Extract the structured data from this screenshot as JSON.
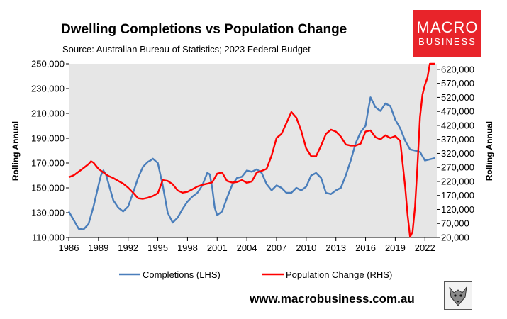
{
  "header": {
    "title": "Dwelling Completions vs Population Change",
    "subtitle": "Source: Australian Bureau of Statistics; 2023 Federal Budget"
  },
  "logo": {
    "line1": "MACRO",
    "line2": "BUSINESS",
    "color": "#e8242a"
  },
  "footer": {
    "website": "www.macrobusiness.com.au"
  },
  "chart_data": {
    "type": "line",
    "title": "Dwelling Completions vs Population Change",
    "xlabel": "",
    "ylabel_left": "Rolling Annual",
    "ylabel_right": "Rolling Annual",
    "xlim": [
      1986,
      2023.2
    ],
    "ylim_left": [
      110000,
      250000
    ],
    "ylim_right": [
      20000,
      640000
    ],
    "x_ticks": [
      1986,
      1989,
      1992,
      1995,
      1998,
      2001,
      2004,
      2007,
      2010,
      2013,
      2016,
      2019,
      2022
    ],
    "y_ticks_left": [
      "110,000",
      "130,000",
      "150,000",
      "170,000",
      "190,000",
      "210,000",
      "230,000",
      "250,000"
    ],
    "y_ticks_left_values": [
      110000,
      130000,
      150000,
      170000,
      190000,
      210000,
      230000,
      250000
    ],
    "y_ticks_right": [
      "20,000",
      "70,000",
      "120,000",
      "170,000",
      "220,000",
      "270,000",
      "320,000",
      "370,000",
      "420,000",
      "470,000",
      "520,000",
      "570,000",
      "620,000"
    ],
    "y_ticks_right_values": [
      20000,
      70000,
      120000,
      170000,
      220000,
      270000,
      320000,
      370000,
      420000,
      470000,
      520000,
      570000,
      620000
    ],
    "grid": false,
    "legend_position": "bottom",
    "series": [
      {
        "name": "Completions (LHS)",
        "axis": "left",
        "color": "#4a7ebb",
        "x": [
          1986.0,
          1986.5,
          1987.0,
          1987.5,
          1988.0,
          1988.5,
          1989.0,
          1989.25,
          1989.5,
          1989.75,
          1990.0,
          1990.5,
          1991.0,
          1991.5,
          1992.0,
          1992.5,
          1993.0,
          1993.5,
          1994.0,
          1994.25,
          1994.5,
          1995.0,
          1995.5,
          1996.0,
          1996.5,
          1997.0,
          1997.5,
          1998.0,
          1998.5,
          1999.0,
          1999.5,
          2000.0,
          2000.25,
          2000.5,
          2000.75,
          2001.0,
          2001.5,
          2002.0,
          2002.5,
          2003.0,
          2003.5,
          2004.0,
          2004.5,
          2005.0,
          2005.5,
          2006.0,
          2006.5,
          2007.0,
          2007.5,
          2008.0,
          2008.5,
          2009.0,
          2009.5,
          2010.0,
          2010.5,
          2011.0,
          2011.5,
          2012.0,
          2012.5,
          2013.0,
          2013.5,
          2014.0,
          2014.5,
          2015.0,
          2015.5,
          2016.0,
          2016.25,
          2016.5,
          2016.75,
          2017.0,
          2017.5,
          2018.0,
          2018.5,
          2019.0,
          2019.5,
          2020.0,
          2020.5,
          2021.0,
          2021.5,
          2022.0,
          2022.5,
          2023.0
        ],
        "values": [
          131000,
          124000,
          117000,
          116500,
          121000,
          135000,
          152000,
          160000,
          164000,
          161000,
          154000,
          140000,
          134000,
          131000,
          135000,
          146000,
          158000,
          167000,
          171000,
          172000,
          173500,
          170000,
          152000,
          130000,
          122000,
          126000,
          133000,
          139000,
          143000,
          146000,
          152000,
          162000,
          161000,
          150000,
          134000,
          128000,
          131000,
          142000,
          152000,
          158000,
          159000,
          164000,
          163000,
          165000,
          162000,
          153000,
          148000,
          152000,
          150000,
          146000,
          146000,
          150000,
          148000,
          151000,
          160000,
          162000,
          158000,
          146000,
          145000,
          148000,
          150000,
          160000,
          172000,
          186000,
          195000,
          200000,
          212000,
          223000,
          219000,
          215000,
          212000,
          218000,
          216000,
          205000,
          198000,
          188000,
          181000,
          180000,
          179000,
          172000,
          173000,
          174000
        ]
      },
      {
        "name": "Population Change (RHS)",
        "axis": "right",
        "color": "#ff0000",
        "x": [
          1986.0,
          1986.5,
          1987.0,
          1987.5,
          1988.0,
          1988.25,
          1988.5,
          1989.0,
          1989.5,
          1990.0,
          1990.5,
          1991.0,
          1991.5,
          1992.0,
          1992.5,
          1993.0,
          1993.5,
          1994.0,
          1994.5,
          1995.0,
          1995.5,
          1996.0,
          1996.5,
          1997.0,
          1997.5,
          1998.0,
          1998.5,
          1999.0,
          1999.5,
          2000.0,
          2000.5,
          2001.0,
          2001.5,
          2002.0,
          2002.5,
          2003.0,
          2003.5,
          2004.0,
          2004.5,
          2005.0,
          2005.5,
          2006.0,
          2006.5,
          2007.0,
          2007.5,
          2008.0,
          2008.5,
          2009.0,
          2009.5,
          2010.0,
          2010.5,
          2011.0,
          2011.5,
          2012.0,
          2012.5,
          2013.0,
          2013.5,
          2014.0,
          2014.5,
          2015.0,
          2015.5,
          2016.0,
          2016.5,
          2017.0,
          2017.5,
          2018.0,
          2018.5,
          2019.0,
          2019.5,
          2020.0,
          2020.25,
          2020.5,
          2020.75,
          2021.0,
          2021.25,
          2021.5,
          2021.75,
          2022.0,
          2022.25,
          2022.5,
          2022.75,
          2023.0
        ],
        "values": [
          235000,
          242000,
          255000,
          268000,
          282000,
          292000,
          287000,
          265000,
          252000,
          240000,
          232000,
          222000,
          212000,
          198000,
          180000,
          160000,
          158000,
          162000,
          168000,
          178000,
          225000,
          222000,
          210000,
          188000,
          180000,
          183000,
          192000,
          202000,
          208000,
          212000,
          217000,
          248000,
          252000,
          222000,
          216000,
          218000,
          225000,
          215000,
          220000,
          252000,
          258000,
          265000,
          312000,
          375000,
          390000,
          428000,
          468000,
          448000,
          400000,
          338000,
          310000,
          310000,
          348000,
          390000,
          405000,
          398000,
          380000,
          352000,
          348000,
          348000,
          355000,
          398000,
          402000,
          378000,
          370000,
          385000,
          375000,
          382000,
          365000,
          200000,
          100000,
          22000,
          40000,
          130000,
          280000,
          450000,
          530000,
          565000,
          590000,
          640000,
          640000,
          640000
        ]
      }
    ]
  }
}
